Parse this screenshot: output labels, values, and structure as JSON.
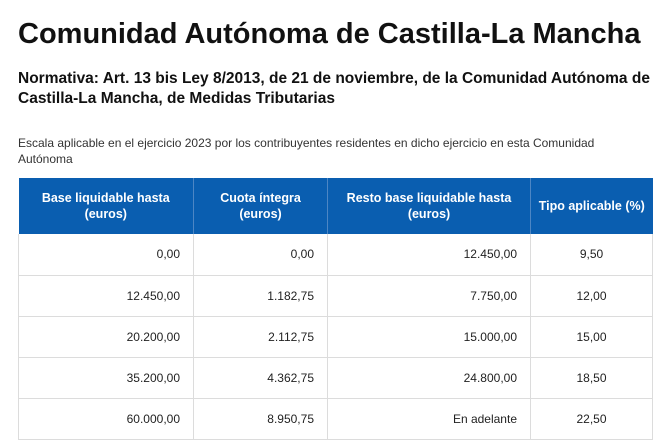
{
  "title": "Comunidad Autónoma de Castilla-La Mancha",
  "subtitle": "Normativa: Art. 13 bis Ley 8/2013, de 21 de noviembre, de la Comunidad Autónoma de Castilla-La Mancha, de Medidas Tributarias",
  "intro": "Escala aplicable en el ejercicio 2023 por los contribuyentes residentes en dicho ejercicio en esta Comunidad Autónoma",
  "table": {
    "headers": [
      "Base liquidable hasta (euros)",
      "Cuota íntegra (euros)",
      "Resto base liquidable hasta (euros)",
      "Tipo aplicable (%)"
    ],
    "rows": [
      [
        "0,00",
        "0,00",
        "12.450,00",
        "9,50"
      ],
      [
        "12.450,00",
        "1.182,75",
        "7.750,00",
        "12,00"
      ],
      [
        "20.200,00",
        "2.112,75",
        "15.000,00",
        "15,00"
      ],
      [
        "35.200,00",
        "4.362,75",
        "24.800,00",
        "18,50"
      ],
      [
        "60.000,00",
        "8.950,75",
        "En adelante",
        "22,50"
      ]
    ]
  },
  "colors": {
    "header_bg": "#0a5eb0",
    "header_text": "#ffffff",
    "border": "#dcdcdc"
  }
}
